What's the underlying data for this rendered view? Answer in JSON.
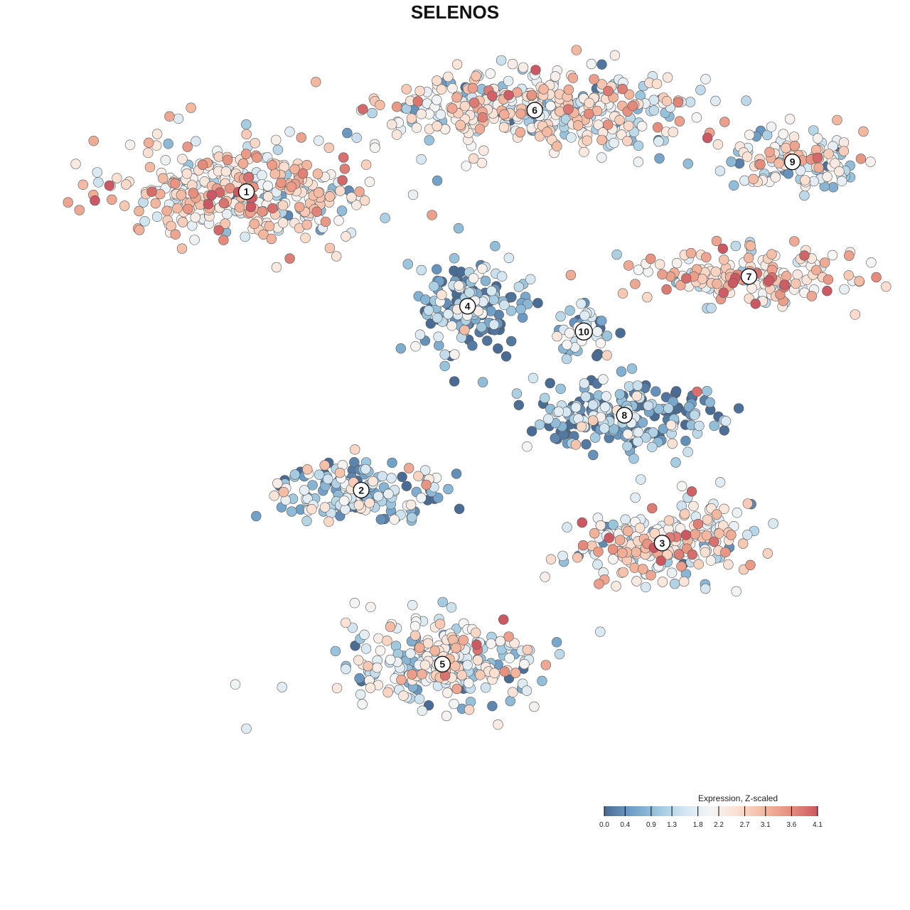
{
  "chart_data": {
    "type": "scatter",
    "title": "SELENOS",
    "subtitle": "",
    "xlabel": "",
    "ylabel": "",
    "axes_shown": false,
    "grid": false,
    "color_variable": "Expression, Z-scaled",
    "colorbar": {
      "title": "Expression, Z-scaled",
      "min": 0.0,
      "max": 4.1,
      "tick_values": [
        0.0,
        0.4,
        0.9,
        1.3,
        1.8,
        2.2,
        2.7,
        3.1,
        3.6,
        4.1
      ],
      "tick_labels": [
        "0.0",
        "0.4",
        "0.9",
        "1.3",
        "1.8",
        "2.2",
        "2.7",
        "3.1",
        "3.6",
        "4.1"
      ],
      "palette": [
        "#4a6b93",
        "#6f9ec7",
        "#9cc6de",
        "#d4e6f1",
        "#f5f5f5",
        "#fbe0d2",
        "#f3b79f",
        "#e68e7e",
        "#cb5862"
      ],
      "placement": "bottom-right"
    },
    "clusters": [
      {
        "label": "1",
        "x": -17.4,
        "y": 15.6,
        "spread": [
          8.2,
          4.3
        ],
        "mean_expression": 2.4
      },
      {
        "label": "2",
        "x": -9.2,
        "y": -11.5,
        "spread": [
          5.5,
          2.6
        ],
        "mean_expression": 1.1
      },
      {
        "label": "3",
        "x": 12.3,
        "y": -16.3,
        "spread": [
          5.6,
          3.6
        ],
        "mean_expression": 2.2
      },
      {
        "label": "4",
        "x": -1.6,
        "y": 5.2,
        "spread": [
          3.5,
          4.1
        ],
        "mean_expression": 0.8
      },
      {
        "label": "5",
        "x": -3.4,
        "y": -27.3,
        "spread": [
          6.5,
          3.8
        ],
        "mean_expression": 1.8
      },
      {
        "label": "6",
        "x": 3.2,
        "y": 23.0,
        "spread": [
          10.5,
          3.5
        ],
        "mean_expression": 2.0
      },
      {
        "label": "7",
        "x": 18.5,
        "y": 7.9,
        "spread": [
          7.0,
          2.4
        ],
        "mean_expression": 2.6
      },
      {
        "label": "8",
        "x": 9.6,
        "y": -4.7,
        "spread": [
          6.5,
          2.8
        ],
        "mean_expression": 0.7
      },
      {
        "label": "9",
        "x": 21.6,
        "y": 18.3,
        "spread": [
          4.6,
          2.3
        ],
        "mean_expression": 1.9
      },
      {
        "label": "10",
        "x": 6.7,
        "y": 2.9,
        "spread": [
          2.0,
          2.0
        ],
        "mean_expression": 1.0
      }
    ],
    "x_range": [
      -35,
      30
    ],
    "y_range": [
      -38,
      33
    ],
    "point_size": 5.5
  }
}
